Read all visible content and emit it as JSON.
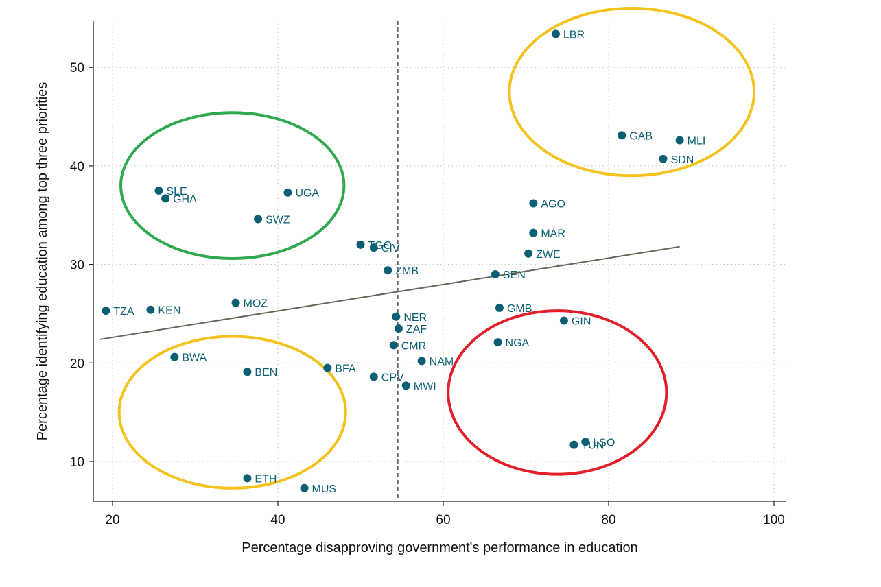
{
  "chart_data": {
    "type": "scatter",
    "title": "",
    "xlabel": "Percentage disapproving government's performance in education",
    "ylabel": "Percentage identifying education among top three priorities",
    "xlim": [
      18,
      101
    ],
    "ylim": [
      6,
      55
    ],
    "xticks": [
      20,
      40,
      60,
      80,
      100
    ],
    "yticks": [
      10,
      20,
      30,
      40,
      50
    ],
    "grid": true,
    "grid_style": "dotted",
    "legend": "none",
    "colors": {
      "points": "#0b5f73",
      "fit_line": "#6b6258",
      "reference_line": "#666666",
      "green": "#2fa84f",
      "yellow": "#f4c21c",
      "red": "#e3202a"
    },
    "points": [
      {
        "label": "LBR",
        "x": 73.6,
        "y": 53.4
      },
      {
        "label": "GAB",
        "x": 81.6,
        "y": 43.1
      },
      {
        "label": "MLI",
        "x": 88.6,
        "y": 42.6
      },
      {
        "label": "SDN",
        "x": 86.6,
        "y": 40.7
      },
      {
        "label": "AGO",
        "x": 70.9,
        "y": 36.2
      },
      {
        "label": "MAR",
        "x": 70.9,
        "y": 33.2
      },
      {
        "label": "ZWE",
        "x": 70.3,
        "y": 31.1
      },
      {
        "label": "SEN",
        "x": 66.3,
        "y": 29.0
      },
      {
        "label": "GMB",
        "x": 66.8,
        "y": 25.6
      },
      {
        "label": "GIN",
        "x": 74.6,
        "y": 24.3
      },
      {
        "label": "NGA",
        "x": 66.6,
        "y": 22.1
      },
      {
        "label": "LSO",
        "x": 77.2,
        "y": 12.0
      },
      {
        "label": "TUN",
        "x": 75.8,
        "y": 11.7
      },
      {
        "label": "SLE",
        "x": 25.6,
        "y": 37.5
      },
      {
        "label": "GHA",
        "x": 26.4,
        "y": 36.7
      },
      {
        "label": "UGA",
        "x": 41.2,
        "y": 37.3
      },
      {
        "label": "SWZ",
        "x": 37.6,
        "y": 34.6
      },
      {
        "label": "TGO",
        "x": 50.0,
        "y": 32.0
      },
      {
        "label": "CIV",
        "x": 51.6,
        "y": 31.7
      },
      {
        "label": "ZMB",
        "x": 53.3,
        "y": 29.4
      },
      {
        "label": "TZA",
        "x": 19.2,
        "y": 25.3
      },
      {
        "label": "KEN",
        "x": 24.6,
        "y": 25.4
      },
      {
        "label": "MOZ",
        "x": 34.9,
        "y": 26.1
      },
      {
        "label": "NER",
        "x": 54.3,
        "y": 24.7
      },
      {
        "label": "ZAF",
        "x": 54.6,
        "y": 23.5
      },
      {
        "label": "CMR",
        "x": 54.0,
        "y": 21.8
      },
      {
        "label": "NAM",
        "x": 57.4,
        "y": 20.2
      },
      {
        "label": "BWA",
        "x": 27.5,
        "y": 20.6
      },
      {
        "label": "BEN",
        "x": 36.3,
        "y": 19.1
      },
      {
        "label": "BFA",
        "x": 46.0,
        "y": 19.5
      },
      {
        "label": "CPV",
        "x": 51.6,
        "y": 18.6
      },
      {
        "label": "MWI",
        "x": 55.5,
        "y": 17.7
      },
      {
        "label": "ETH",
        "x": 36.3,
        "y": 8.3
      },
      {
        "label": "MUS",
        "x": 43.2,
        "y": 7.3
      }
    ],
    "fit_line": {
      "x": [
        18.5,
        88.6
      ],
      "y": [
        22.4,
        31.8
      ]
    },
    "reference_line": {
      "x": 54.5
    },
    "ellipses": [
      {
        "color": "green",
        "cx": 34.5,
        "cy": 38.0,
        "rx": 13.5,
        "ry": 7.4
      },
      {
        "color": "yellow",
        "cx": 82.8,
        "cy": 47.5,
        "rx": 14.8,
        "ry": 8.5
      },
      {
        "color": "yellow",
        "cx": 34.5,
        "cy": 15.0,
        "rx": 13.7,
        "ry": 7.7
      },
      {
        "color": "red",
        "cx": 73.8,
        "cy": 17.0,
        "rx": 13.2,
        "ry": 8.3
      }
    ]
  }
}
